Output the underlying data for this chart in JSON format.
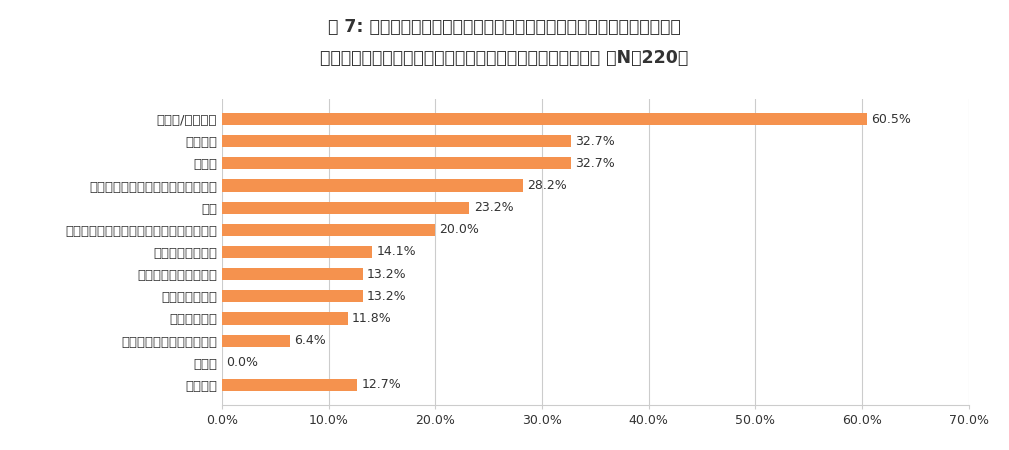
{
  "title_line1": "表 7: 太りにくい体質に「とてもなりたい」「なりたい」と回答した方に",
  "title_line2": "太るとわかっていてもやめられないことは何ですか＜全体＞ 【N＝220】",
  "categories": [
    "お菓子/スイーツ",
    "炭水化物",
    "揚げ物",
    "運動をしないでゴロゴロしてしまう",
    "お酒",
    "もったいないので残りものを食べてしまう",
    "夜遅い時間に食事",
    "甘い清涼飲料や飲み物",
    "だらだら食べる",
    "不規則な生活",
    "お酒の後のシメのラーメン",
    "その他",
    "特になし"
  ],
  "values": [
    60.5,
    32.7,
    32.7,
    28.2,
    23.2,
    20.0,
    14.1,
    13.2,
    13.2,
    11.8,
    6.4,
    0.0,
    12.7
  ],
  "bar_color": "#F5924E",
  "background_color": "#FFFFFF",
  "xlim": [
    0,
    70
  ],
  "xticks": [
    0,
    10,
    20,
    30,
    40,
    50,
    60,
    70
  ],
  "xtick_labels": [
    "0.0%",
    "10.0%",
    "20.0%",
    "30.0%",
    "40.0%",
    "50.0%",
    "60.0%",
    "70.0%"
  ],
  "title_fontsize": 12.5,
  "label_fontsize": 9.5,
  "value_fontsize": 9,
  "tick_fontsize": 9,
  "grid_color": "#CCCCCC",
  "text_color": "#333333"
}
